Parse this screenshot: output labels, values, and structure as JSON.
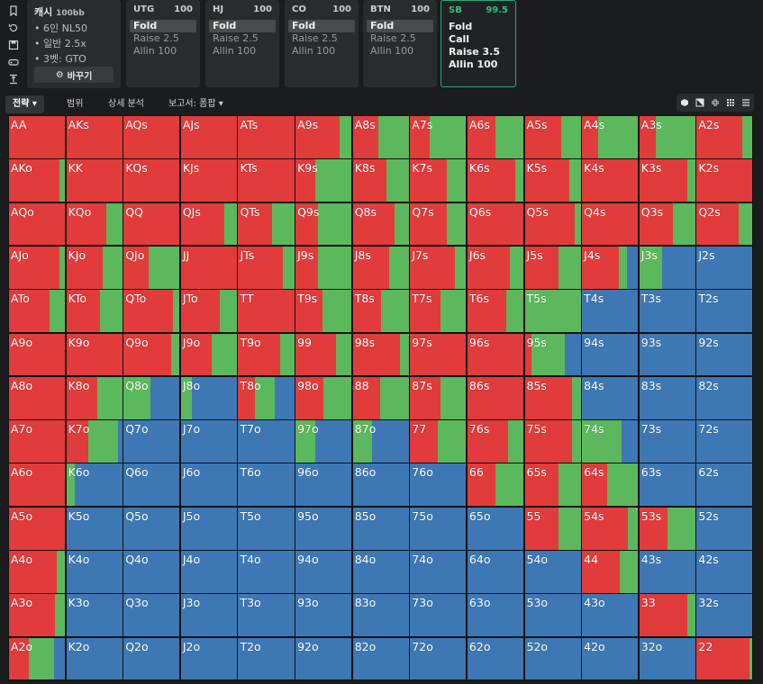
{
  "sidebar": {
    "icons": [
      "bookmark-icon",
      "history-icon",
      "save-icon",
      "gamepad-icon",
      "align-icon"
    ]
  },
  "info": {
    "title": "캐시",
    "title_suffix": "100bb",
    "lines": [
      "6인 NL50",
      "일반 2.5x",
      "3벳: GTO"
    ],
    "change_label": "바꾸기"
  },
  "positions": [
    {
      "name": "UTG",
      "stack": "100",
      "actions": [
        "Fold",
        "Raise 2.5",
        "Allin 100"
      ],
      "selected": 0,
      "active": false
    },
    {
      "name": "HJ",
      "stack": "100",
      "actions": [
        "Fold",
        "Raise 2.5",
        "Allin 100"
      ],
      "selected": 0,
      "active": false
    },
    {
      "name": "CO",
      "stack": "100",
      "actions": [
        "Fold",
        "Raise 2.5",
        "Allin 100"
      ],
      "selected": 0,
      "active": false
    },
    {
      "name": "BTN",
      "stack": "100",
      "actions": [
        "Fold",
        "Raise 2.5",
        "Allin 100"
      ],
      "selected": 0,
      "active": false
    },
    {
      "name": "SB",
      "stack": "99.5",
      "actions": [
        "Fold",
        "Call",
        "Raise 3.5",
        "Allin 100"
      ],
      "selected": -1,
      "active": true
    }
  ],
  "tabs": {
    "strategy": "전략",
    "range": "범위",
    "analysis": "상세 분석",
    "report": "보고서: 폼팝"
  },
  "colors": {
    "raise": "#e23b3b",
    "call": "#5cb85c",
    "fold": "#3d78b5"
  },
  "hands": [
    [
      "AA",
      "AKs",
      "AQs",
      "AJs",
      "ATs",
      "A9s",
      "A8s",
      "A7s",
      "A6s",
      "A5s",
      "A4s",
      "A3s",
      "A2s"
    ],
    [
      "AKo",
      "KK",
      "KQs",
      "KJs",
      "KTs",
      "K9s",
      "K8s",
      "K7s",
      "K6s",
      "K5s",
      "K4s",
      "K3s",
      "K2s"
    ],
    [
      "AQo",
      "KQo",
      "QQ",
      "QJs",
      "QTs",
      "Q9s",
      "Q8s",
      "Q7s",
      "Q6s",
      "Q5s",
      "Q4s",
      "Q3s",
      "Q2s"
    ],
    [
      "AJo",
      "KJo",
      "QJo",
      "JJ",
      "JTs",
      "J9s",
      "J8s",
      "J7s",
      "J6s",
      "J5s",
      "J4s",
      "J3s",
      "J2s"
    ],
    [
      "ATo",
      "KTo",
      "QTo",
      "JTo",
      "TT",
      "T9s",
      "T8s",
      "T7s",
      "T6s",
      "T5s",
      "T4s",
      "T3s",
      "T2s"
    ],
    [
      "A9o",
      "K9o",
      "Q9o",
      "J9o",
      "T9o",
      "99",
      "98s",
      "97s",
      "96s",
      "95s",
      "94s",
      "93s",
      "92s"
    ],
    [
      "A8o",
      "K8o",
      "Q8o",
      "J8o",
      "T8o",
      "98o",
      "88",
      "87s",
      "86s",
      "85s",
      "84s",
      "83s",
      "82s"
    ],
    [
      "A7o",
      "K7o",
      "Q7o",
      "J7o",
      "T7o",
      "97o",
      "87o",
      "77",
      "76s",
      "75s",
      "74s",
      "73s",
      "72s"
    ],
    [
      "A6o",
      "K6o",
      "Q6o",
      "J6o",
      "T6o",
      "96o",
      "86o",
      "76o",
      "66",
      "65s",
      "64s",
      "63s",
      "62s"
    ],
    [
      "A5o",
      "K5o",
      "Q5o",
      "J5o",
      "T5o",
      "95o",
      "85o",
      "75o",
      "65o",
      "55",
      "54s",
      "53s",
      "52s"
    ],
    [
      "A4o",
      "K4o",
      "Q4o",
      "J4o",
      "T4o",
      "94o",
      "84o",
      "74o",
      "64o",
      "54o",
      "44",
      "43s",
      "42s"
    ],
    [
      "A3o",
      "K3o",
      "Q3o",
      "J3o",
      "T3o",
      "93o",
      "83o",
      "73o",
      "63o",
      "53o",
      "43o",
      "33",
      "32s"
    ],
    [
      "A2o",
      "K2o",
      "Q2o",
      "J2o",
      "T2o",
      "92o",
      "82o",
      "72o",
      "62o",
      "52o",
      "42o",
      "32o",
      "22"
    ]
  ],
  "freq": [
    [
      [
        1,
        0
      ],
      [
        1,
        0
      ],
      [
        1,
        0
      ],
      [
        1,
        0
      ],
      [
        1,
        0
      ],
      [
        0.78,
        0.22
      ],
      [
        0.45,
        0.55
      ],
      [
        0.35,
        0.65
      ],
      [
        0.5,
        0.5
      ],
      [
        0.65,
        0.35
      ],
      [
        0.28,
        0.72
      ],
      [
        0.3,
        0.7
      ],
      [
        0.82,
        0.18
      ]
    ],
    [
      [
        0.9,
        0.1
      ],
      [
        1,
        0
      ],
      [
        1,
        0
      ],
      [
        1,
        0
      ],
      [
        1,
        0
      ],
      [
        0.35,
        0.65
      ],
      [
        0.6,
        0.4
      ],
      [
        0.65,
        0.35
      ],
      [
        0.85,
        0.15
      ],
      [
        0.8,
        0.2
      ],
      [
        1,
        0
      ],
      [
        0.85,
        0.15
      ],
      [
        1,
        0
      ]
    ],
    [
      [
        1,
        0
      ],
      [
        0.72,
        0.28
      ],
      [
        1,
        0
      ],
      [
        0.78,
        0.22
      ],
      [
        0.6,
        0.4
      ],
      [
        0.4,
        0.6
      ],
      [
        0.75,
        0.25
      ],
      [
        0.65,
        0.35
      ],
      [
        1,
        0
      ],
      [
        0.9,
        0.1
      ],
      [
        1,
        0
      ],
      [
        0.6,
        0.4
      ],
      [
        0.75,
        0.25
      ]
    ],
    [
      [
        0.9,
        0.1
      ],
      [
        0.65,
        0.35
      ],
      [
        0.45,
        0.55
      ],
      [
        1,
        0
      ],
      [
        0.8,
        0.2
      ],
      [
        0.4,
        0.6
      ],
      [
        0.65,
        0.35
      ],
      [
        0.8,
        0.2
      ],
      [
        0.75,
        0.25
      ],
      [
        0.6,
        0.4
      ],
      [
        0.65,
        0.15
      ],
      [
        0,
        0.4
      ],
      [
        0,
        0
      ]
    ],
    [
      [
        0.72,
        0.28
      ],
      [
        0.6,
        0.4
      ],
      [
        0.88,
        0.12
      ],
      [
        0.7,
        0.3
      ],
      [
        1,
        0
      ],
      [
        0.48,
        0.52
      ],
      [
        0.5,
        0.5
      ],
      [
        0.55,
        0.45
      ],
      [
        0.7,
        0.3
      ],
      [
        0,
        1
      ],
      [
        0,
        0
      ],
      [
        0,
        0
      ],
      [
        0,
        0
      ]
    ],
    [
      [
        1,
        0
      ],
      [
        1,
        0
      ],
      [
        0.85,
        0.15
      ],
      [
        0.55,
        0.45
      ],
      [
        0.75,
        0.25
      ],
      [
        0.72,
        0.28
      ],
      [
        0.85,
        0.15
      ],
      [
        1,
        0
      ],
      [
        1,
        0
      ],
      [
        0.12,
        0.6
      ],
      [
        0,
        0
      ],
      [
        0,
        0
      ],
      [
        0,
        0
      ]
    ],
    [
      [
        1,
        0
      ],
      [
        0.55,
        0.45
      ],
      [
        0,
        0.48
      ],
      [
        0,
        0.2
      ],
      [
        0.3,
        0.35
      ],
      [
        0.5,
        0.5
      ],
      [
        0.48,
        0.52
      ],
      [
        0.55,
        0.45
      ],
      [
        1,
        0
      ],
      [
        0.85,
        0.15
      ],
      [
        0,
        0
      ],
      [
        0,
        0
      ],
      [
        0,
        0
      ]
    ],
    [
      [
        1,
        0
      ],
      [
        0.4,
        0.52
      ],
      [
        0,
        0
      ],
      [
        0,
        0
      ],
      [
        0,
        0
      ],
      [
        0,
        0.35
      ],
      [
        0,
        0.35
      ],
      [
        0.5,
        0.5
      ],
      [
        0.72,
        0.28
      ],
      [
        0.85,
        0.15
      ],
      [
        0,
        0.7
      ],
      [
        0,
        0
      ],
      [
        0,
        0
      ]
    ],
    [
      [
        1,
        0
      ],
      [
        0,
        0.15
      ],
      [
        0,
        0
      ],
      [
        0,
        0
      ],
      [
        0,
        0
      ],
      [
        0,
        0
      ],
      [
        0,
        0
      ],
      [
        0,
        0
      ],
      [
        0.5,
        0.5
      ],
      [
        0.6,
        0.4
      ],
      [
        0.45,
        0.55
      ],
      [
        0,
        0
      ],
      [
        0,
        0
      ]
    ],
    [
      [
        1,
        0
      ],
      [
        0,
        0
      ],
      [
        0,
        0
      ],
      [
        0,
        0
      ],
      [
        0,
        0
      ],
      [
        0,
        0
      ],
      [
        0,
        0
      ],
      [
        0,
        0
      ],
      [
        0,
        0
      ],
      [
        0.6,
        0.4
      ],
      [
        0.82,
        0.18
      ],
      [
        0.5,
        0.5
      ],
      [
        0,
        0
      ]
    ],
    [
      [
        0.85,
        0.15
      ],
      [
        0,
        0
      ],
      [
        0,
        0
      ],
      [
        0,
        0
      ],
      [
        0,
        0
      ],
      [
        0,
        0
      ],
      [
        0,
        0
      ],
      [
        0,
        0
      ],
      [
        0,
        0
      ],
      [
        0,
        0
      ],
      [
        0.68,
        0.32
      ],
      [
        0,
        0
      ],
      [
        0,
        0
      ]
    ],
    [
      [
        0.82,
        0.18
      ],
      [
        0,
        0
      ],
      [
        0,
        0
      ],
      [
        0,
        0
      ],
      [
        0,
        0
      ],
      [
        0,
        0
      ],
      [
        0,
        0
      ],
      [
        0,
        0
      ],
      [
        0,
        0
      ],
      [
        0,
        0
      ],
      [
        0,
        0
      ],
      [
        0.85,
        0.15
      ],
      [
        0,
        0
      ]
    ],
    [
      [
        0.35,
        0.45
      ],
      [
        0,
        0
      ],
      [
        0,
        0
      ],
      [
        0,
        0
      ],
      [
        0,
        0
      ],
      [
        0,
        0
      ],
      [
        0,
        0
      ],
      [
        0,
        0
      ],
      [
        0,
        0
      ],
      [
        0,
        0
      ],
      [
        0,
        0
      ],
      [
        0,
        0
      ],
      [
        0.95,
        0.05
      ]
    ]
  ]
}
